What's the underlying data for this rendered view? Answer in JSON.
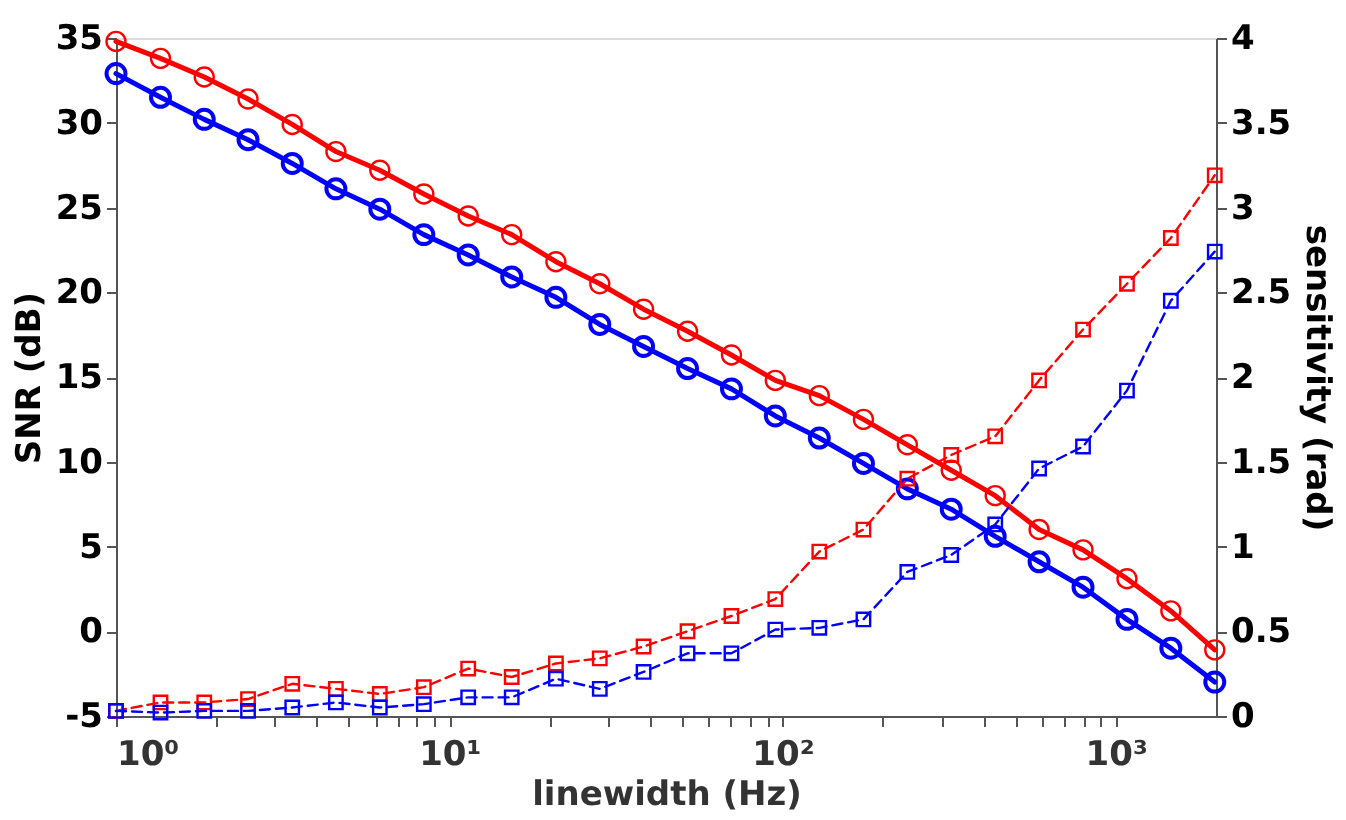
{
  "chart_data": {
    "type": "line",
    "xlabel": "linewidth (Hz)",
    "ylabel": "SNR (dB)",
    "y2label": "sensitivity (rad)",
    "log": "x",
    "grid": false,
    "xlim": [
      1,
      2000
    ],
    "xticks": [
      {
        "value": 1,
        "label": "10⁰"
      },
      {
        "value": 2,
        "label": null
      },
      {
        "value": 3,
        "label": null
      },
      {
        "value": 4,
        "label": null
      },
      {
        "value": 5,
        "label": null
      },
      {
        "value": 6,
        "label": null
      },
      {
        "value": 7,
        "label": null
      },
      {
        "value": 8,
        "label": null
      },
      {
        "value": 9,
        "label": null
      },
      {
        "value": 10,
        "label": "10¹"
      },
      {
        "value": 20,
        "label": null
      },
      {
        "value": 30,
        "label": null
      },
      {
        "value": 40,
        "label": null
      },
      {
        "value": 50,
        "label": null
      },
      {
        "value": 60,
        "label": null
      },
      {
        "value": 70,
        "label": null
      },
      {
        "value": 80,
        "label": null
      },
      {
        "value": 90,
        "label": null
      },
      {
        "value": 100,
        "label": "10²"
      },
      {
        "value": 200,
        "label": null
      },
      {
        "value": 300,
        "label": null
      },
      {
        "value": 400,
        "label": null
      },
      {
        "value": 500,
        "label": null
      },
      {
        "value": 600,
        "label": null
      },
      {
        "value": 700,
        "label": null
      },
      {
        "value": 800,
        "label": null
      },
      {
        "value": 900,
        "label": null
      },
      {
        "value": 1000,
        "label": "10³"
      }
    ],
    "ylim": [
      -5,
      35
    ],
    "yticks": [
      -5,
      0,
      5,
      10,
      15,
      20,
      25,
      30,
      35
    ],
    "y2lim": [
      0,
      4
    ],
    "y2ticks": [
      0,
      0.5,
      1,
      1.5,
      2,
      2.5,
      3,
      3.5,
      4
    ],
    "x": [
      1,
      1.36,
      1.84,
      2.49,
      3.38,
      4.57,
      6.19,
      8.39,
      11.4,
      15.4,
      20.9,
      28.3,
      38.3,
      51.9,
      70.3,
      95.2,
      129,
      175,
      237,
      321,
      435,
      589,
      798,
      1081,
      1464,
      1983
    ],
    "series": [
      {
        "color": "#ff0000",
        "marker": "circle",
        "line_style": "solid",
        "values": [
          34.8,
          33.8,
          32.7,
          31.4,
          29.9,
          28.3,
          27.2,
          25.8,
          24.5,
          23.4,
          21.8,
          20.5,
          19.0,
          17.7,
          16.3,
          14.8,
          13.9,
          12.5,
          11.0,
          9.5,
          8.0,
          6.0,
          4.8,
          3.1,
          1.2,
          -1.1
        ]
      },
      {
        "color": "#0000ff",
        "marker": "circle",
        "line_style": "solid",
        "values": [
          32.9,
          31.5,
          30.2,
          29.0,
          27.6,
          26.1,
          24.9,
          23.4,
          22.2,
          20.9,
          19.7,
          18.1,
          16.8,
          15.5,
          14.3,
          12.7,
          11.4,
          9.9,
          8.4,
          7.2,
          5.6,
          4.1,
          2.6,
          0.7,
          -1.0,
          -3.0
        ]
      },
      {
        "color": "#ff0000",
        "marker": "square",
        "line_style": "dashed",
        "axis": "y2",
        "values": [
          0.03,
          0.08,
          0.08,
          0.1,
          0.19,
          0.16,
          0.13,
          0.17,
          0.28,
          0.23,
          0.31,
          0.34,
          0.41,
          0.5,
          0.59,
          0.69,
          0.97,
          1.1,
          1.4,
          1.54,
          1.65,
          1.98,
          2.28,
          2.55,
          2.82,
          3.19
        ]
      },
      {
        "color": "#0000ff",
        "marker": "square",
        "line_style": "dashed",
        "axis": "y2",
        "values": [
          0.03,
          0.02,
          0.03,
          0.03,
          0.05,
          0.08,
          0.05,
          0.07,
          0.11,
          0.11,
          0.22,
          0.16,
          0.26,
          0.37,
          0.37,
          0.51,
          0.52,
          0.57,
          0.85,
          0.95,
          1.13,
          1.46,
          1.59,
          1.92,
          2.45,
          2.74
        ]
      }
    ]
  }
}
